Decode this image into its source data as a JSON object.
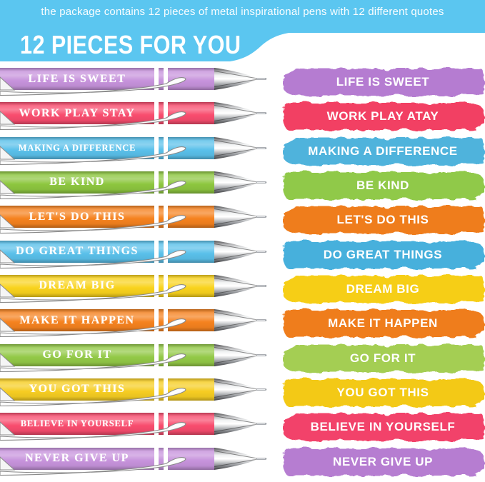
{
  "header": {
    "tagline": "the package contains 12 pieces of metal inspirational pens with 12 different quotes",
    "title": "12 PIECES FOR YOU",
    "banner_color": "#5BC6F0",
    "text_color": "#FFFFFF"
  },
  "pen_details": {
    "tip_color": "silver-chrome",
    "label_text_color": "#FFFFFF",
    "ring_color": "#FFFFFF"
  },
  "rows": [
    {
      "pen_text": "LIFE IS SWEET",
      "stroke_text": "LIFE IS SWEET",
      "pen_color": "#C793DC",
      "stroke_color": "#B57CD1"
    },
    {
      "pen_text": "WORK PLAY STAY",
      "stroke_text": "WORK PLAY ATAY",
      "pen_color": "#F84C6E",
      "stroke_color": "#F23F63"
    },
    {
      "pen_text": "MAKING A DIFFERENCE",
      "stroke_text": "MAKING A DIFFERENCE",
      "pen_color": "#5AC0EA",
      "stroke_color": "#4FB3DC"
    },
    {
      "pen_text": "BE KIND",
      "stroke_text": "BE KIND",
      "pen_color": "#8DC63F",
      "stroke_color": "#90C94A"
    },
    {
      "pen_text": "LET'S DO THIS",
      "stroke_text": "LET'S DO THIS",
      "pen_color": "#F5821F",
      "stroke_color": "#EF7D1E"
    },
    {
      "pen_text": "DO GREAT THINGS",
      "stroke_text": "DO GREAT THINGS",
      "pen_color": "#5AC0EA",
      "stroke_color": "#47B0DC"
    },
    {
      "pen_text": "DREAM BIG",
      "stroke_text": "DREAM BIG",
      "pen_color": "#F9D31D",
      "stroke_color": "#F6CE16"
    },
    {
      "pen_text": "MAKE IT HAPPEN",
      "stroke_text": "MAKE IT HAPPEN",
      "pen_color": "#F5821F",
      "stroke_color": "#EF7D1E"
    },
    {
      "pen_text": "GO FOR IT",
      "stroke_text": "GO FOR IT",
      "pen_color": "#93C947",
      "stroke_color": "#A4CE52"
    },
    {
      "pen_text": "YOU GOT THIS",
      "stroke_text": "YOU GOT THIS",
      "pen_color": "#F6CD22",
      "stroke_color": "#F3C916"
    },
    {
      "pen_text": "BELIEVE IN YOURSELF",
      "stroke_text": "BELIEVE IN YOURSELF",
      "pen_color": "#F84C6E",
      "stroke_color": "#F2436A"
    },
    {
      "pen_text": "NEVER GIVE UP",
      "stroke_text": "NEVER GIVE UP",
      "pen_color": "#C793DC",
      "stroke_color": "#B67DD1"
    }
  ]
}
